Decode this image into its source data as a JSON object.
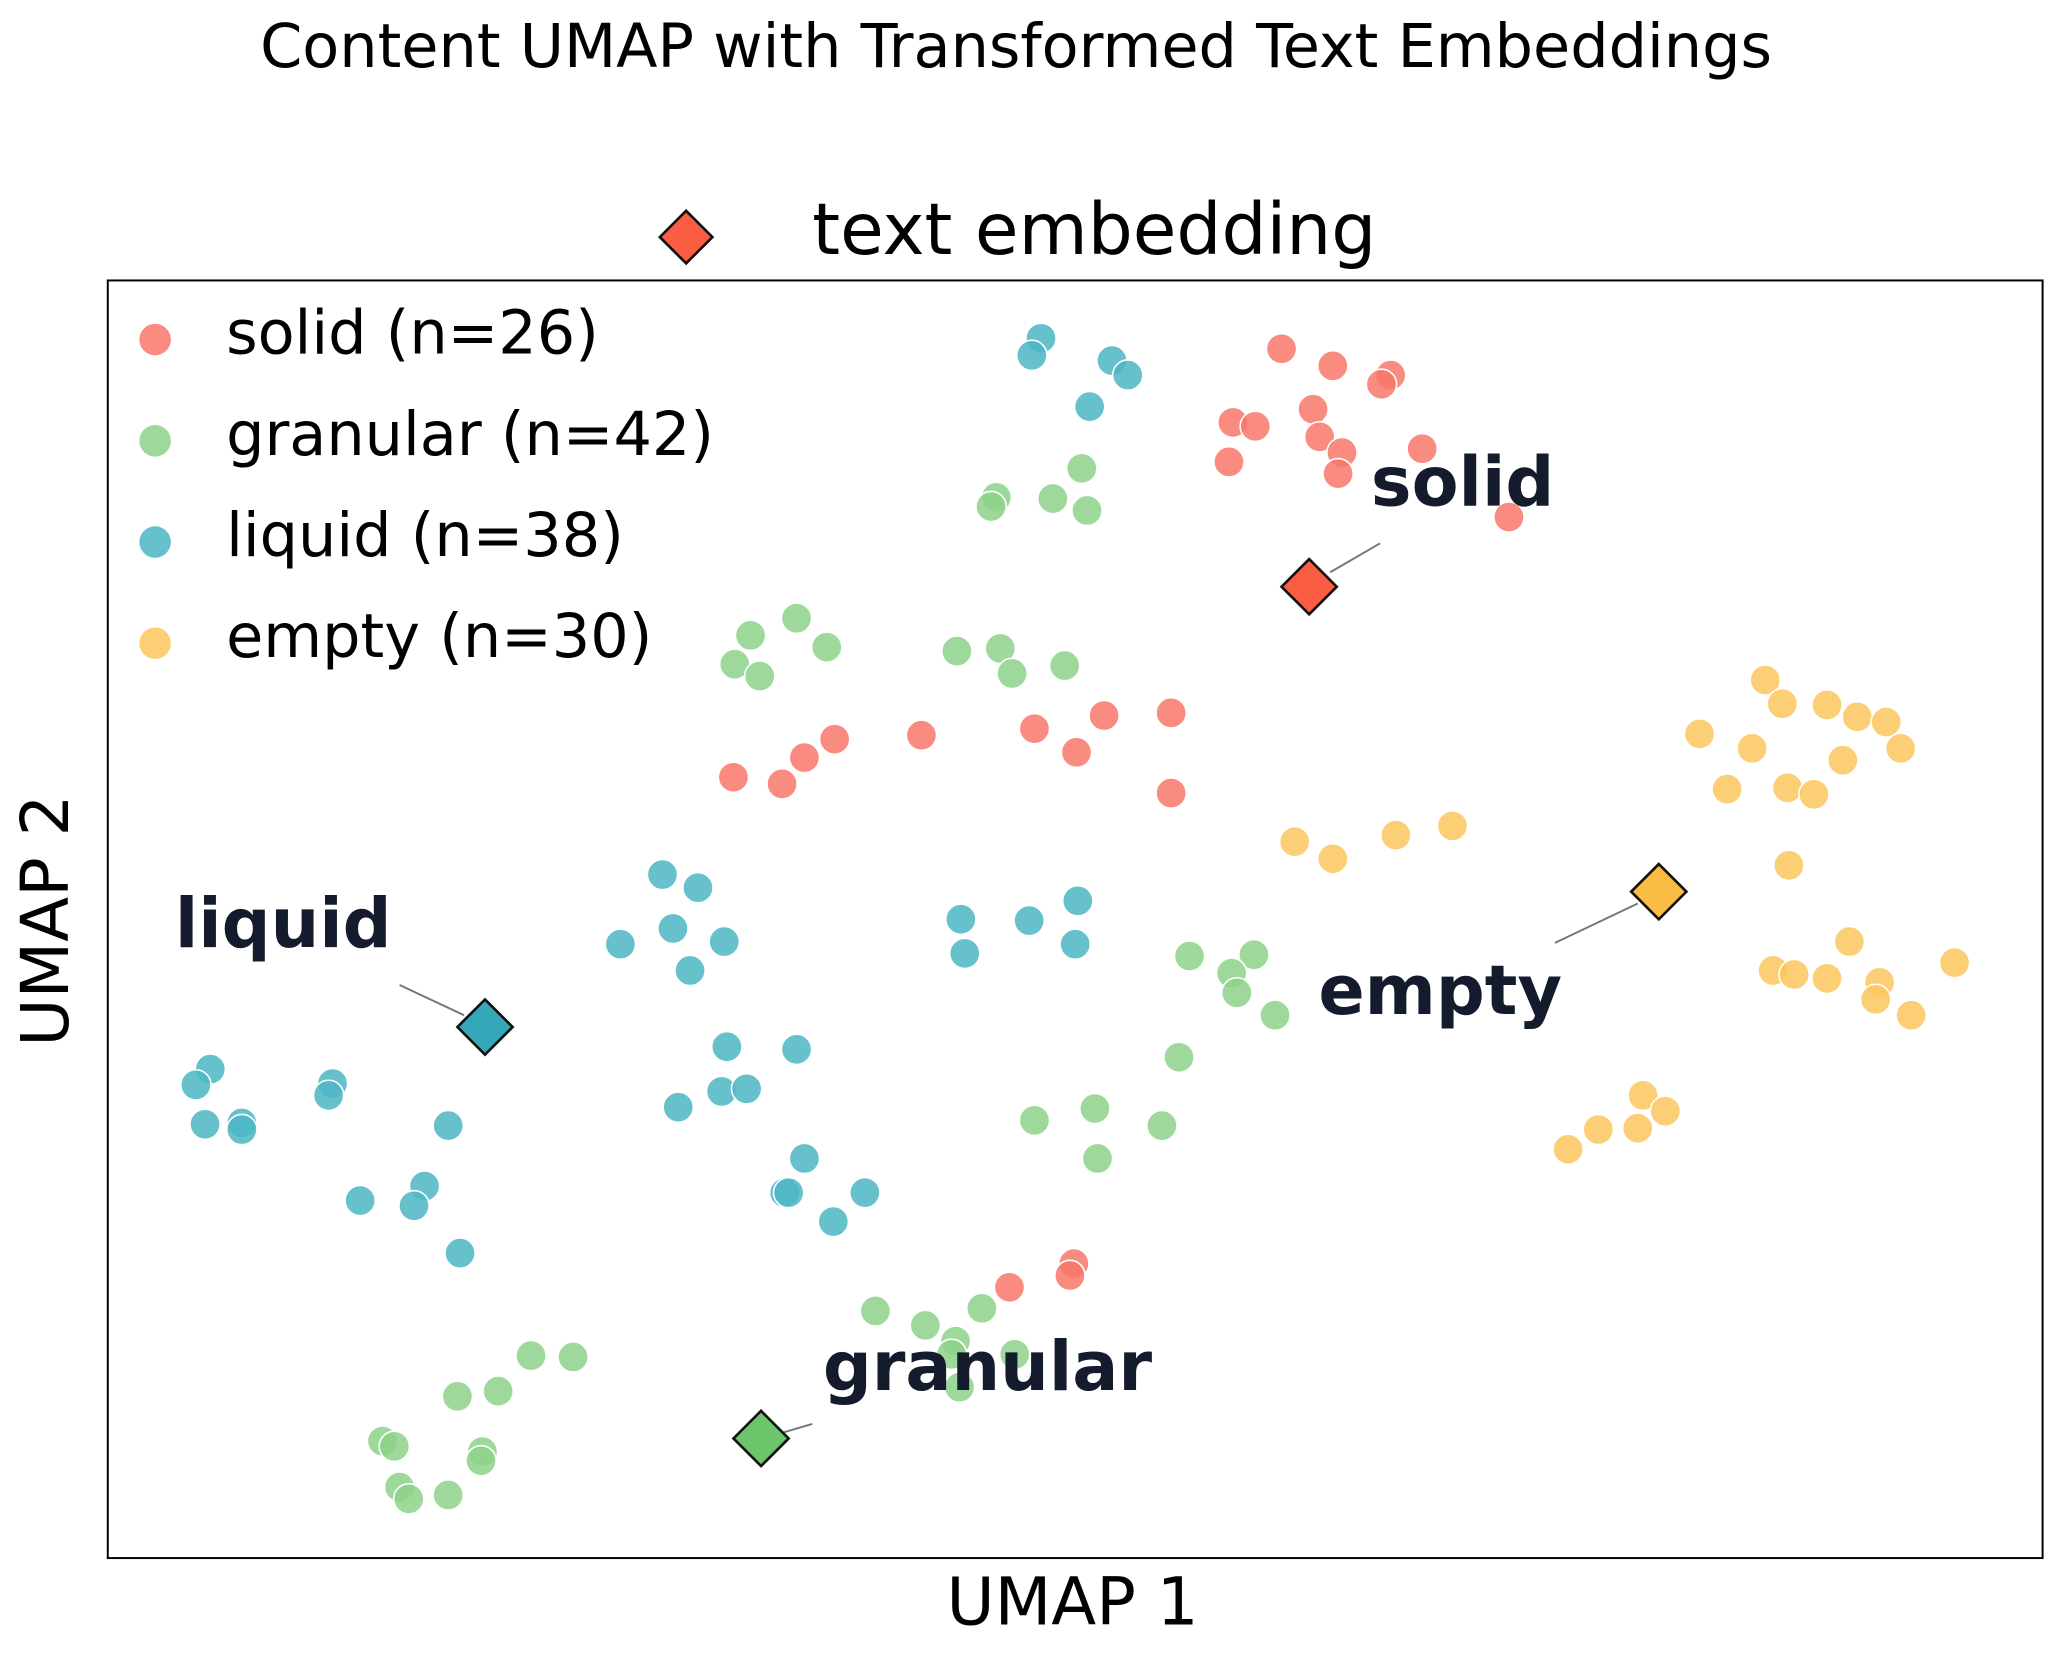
{
  "chart_data": {
    "type": "scatter",
    "title": "Content UMAP with Transformed Text Embeddings",
    "xlabel": "UMAP 1",
    "ylabel": "UMAP 2",
    "xlim": [
      0,
      1472
    ],
    "ylim": [
      0,
      972
    ],
    "legend": "upper left",
    "series": [
      {
        "name": "solid (n=26)",
        "color": "#f8776a",
        "x": [
          893,
          932,
          976,
          969,
          917,
          856,
          873,
          922,
          939,
          853,
          936,
          1000,
          1066,
          476,
          513,
          530,
          553,
          619,
          705,
          737,
          758,
          809,
          809,
          735,
          732,
          686
        ],
        "values": [
          920,
          907,
          900,
          893,
          874,
          864,
          861,
          853,
          841,
          834,
          825,
          844,
          792,
          594,
          589,
          609,
          623,
          626,
          631,
          613,
          641,
          643,
          582,
          224,
          215,
          206
        ]
      },
      {
        "name": "granular (n=42)",
        "color": "#8dd28a",
        "x": [
          676,
          672,
          719,
          741,
          745,
          489,
          524,
          547,
          477,
          496,
          646,
          679,
          688,
          728,
          823,
          872,
          855,
          859,
          888,
          815,
          705,
          751,
          802,
          753,
          584,
          622,
          665,
          645,
          690,
          648,
          322,
          354,
          266,
          297,
          209,
          218,
          285,
          284,
          222,
          259,
          229,
          642
        ],
        "values": [
          807,
          800,
          806,
          829,
          797,
          702,
          715,
          693,
          680,
          671,
          690,
          692,
          673,
          679,
          458,
          459,
          445,
          430,
          413,
          381,
          333,
          342,
          329,
          304,
          188,
          177,
          190,
          165,
          155,
          130,
          154,
          153,
          123,
          127,
          89,
          85,
          81,
          74,
          54,
          48,
          45,
          155
        ]
      },
      {
        "name": "liquid (n=38)",
        "color": "#4cb6c4",
        "x": [
          710,
          703,
          764,
          776,
          747,
          422,
          449,
          430,
          469,
          390,
          443,
          649,
          652,
          701,
          738,
          736,
          78,
          67,
          171,
          168,
          74,
          102,
          102,
          259,
          471,
          524,
          467,
          486,
          434,
          530,
          515,
          518,
          576,
          552,
          192,
          241,
          233,
          268
        ],
        "values": [
          928,
          915,
          911,
          900,
          876,
          520,
          510,
          479,
          469,
          467,
          447,
          486,
          460,
          485,
          500,
          467,
          372,
          360,
          361,
          352,
          330,
          331,
          326,
          329,
          389,
          387,
          355,
          357,
          343,
          304,
          278,
          278,
          278,
          256,
          272,
          283,
          268,
          232
        ]
      },
      {
        "name": "empty (n=30)",
        "color": "#fcc75e",
        "x": [
          1261,
          1274,
          1308,
          1331,
          1353,
          1211,
          1251,
          1364,
          1320,
          1232,
          1278,
          1298,
          903,
          932,
          980,
          1023,
          1279,
          1325,
          1405,
          1267,
          1283,
          1308,
          1348,
          1345,
          1372,
          1168,
          1185,
          1164,
          1134,
          1111
        ],
        "values": [
          668,
          650,
          649,
          640,
          636,
          627,
          616,
          616,
          607,
          585,
          586,
          581,
          545,
          532,
          550,
          557,
          527,
          469,
          453,
          447,
          444,
          441,
          438,
          425,
          413,
          352,
          340,
          327,
          326,
          311
        ]
      }
    ],
    "embeddings": {
      "name": "text embedding",
      "legend_color": "#fa5d42",
      "labels": [
        "solid",
        "liquid",
        "granular",
        "empty"
      ],
      "colors": [
        "#fa5d42",
        "#34a8b8",
        "#6cc56b",
        "#f9bd45"
      ],
      "x": [
        914,
        287,
        497,
        1180
      ],
      "values": [
        739,
        404,
        91,
        507
      ]
    }
  }
}
